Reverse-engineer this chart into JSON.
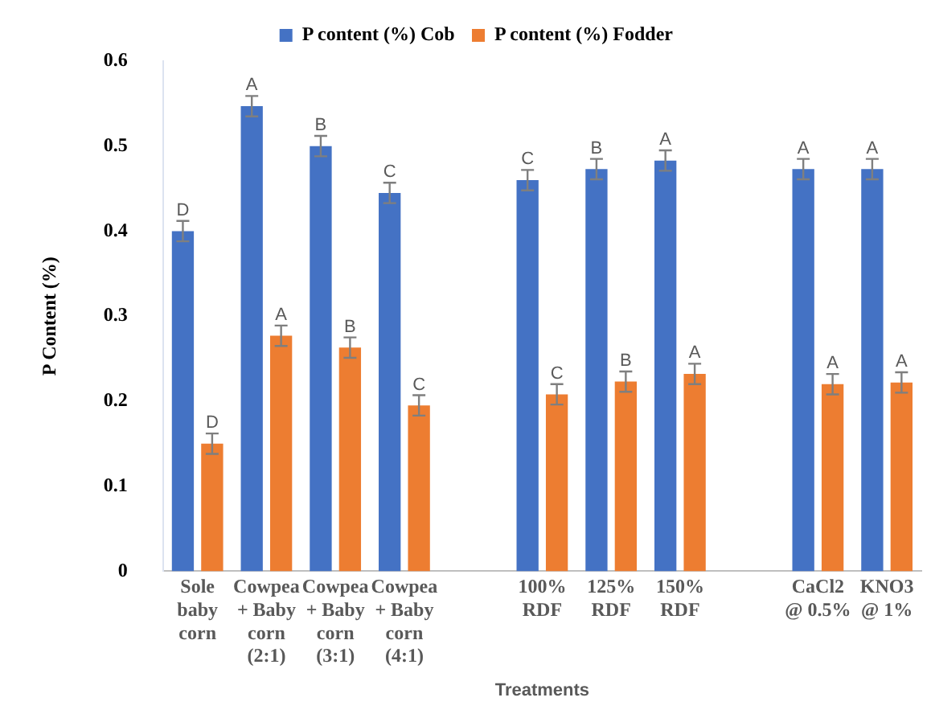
{
  "chart_data": {
    "type": "bar",
    "xlabel": "Treatments",
    "ylabel": "P Content (%)",
    "categories": [
      "Sole\nbaby\ncorn",
      "Cowpea\n+ Baby\ncorn\n(2:1)",
      "Cowpea\n+ Baby\ncorn\n(3:1)",
      "Cowpea\n+ Baby\ncorn\n(4:1)",
      null,
      "100%\nRDF",
      "125%\nRDF",
      "150%\nRDF",
      null,
      "CaCl2\n@ 0.5%",
      "KNO3\n@ 1%"
    ],
    "series": [
      {
        "name": "P content (%) Cob",
        "color": "#4472c4",
        "values": [
          0.4,
          0.547,
          0.5,
          0.445,
          null,
          0.46,
          0.473,
          0.483,
          null,
          0.473,
          0.473
        ],
        "errors": [
          0.012,
          0.012,
          0.012,
          0.012,
          null,
          0.012,
          0.012,
          0.012,
          null,
          0.012,
          0.012
        ]
      },
      {
        "name": "P content (%) Fodder",
        "color": "#ed7d31",
        "values": [
          0.15,
          0.277,
          0.263,
          0.195,
          null,
          0.208,
          0.223,
          0.232,
          null,
          0.22,
          0.222
        ],
        "errors": [
          0.012,
          0.012,
          0.012,
          0.012,
          null,
          0.012,
          0.012,
          0.012,
          null,
          0.012,
          0.012
        ]
      }
    ],
    "ylim": [
      0,
      0.6
    ],
    "yticks": [
      0,
      0.1,
      0.2,
      0.3,
      0.4,
      0.5,
      0.6
    ],
    "grid": false,
    "legend": "top",
    "annotations": [
      {
        "text": "D",
        "x": "Sole\nbaby\ncorn",
        "y": 0.4
      },
      {
        "text": "D",
        "x": "Sole\nbaby\ncorn",
        "y": 0.15
      },
      {
        "text": "A",
        "x": "Cowpea\n+ Baby\ncorn\n(2:1)",
        "y": 0.547
      },
      {
        "text": "A",
        "x": "Cowpea\n+ Baby\ncorn\n(2:1)",
        "y": 0.277
      },
      {
        "text": "B",
        "x": "Cowpea\n+ Baby\ncorn\n(3:1)",
        "y": 0.5
      },
      {
        "text": "B",
        "x": "Cowpea\n+ Baby\ncorn\n(3:1)",
        "y": 0.263
      },
      {
        "text": "C",
        "x": "Cowpea\n+ Baby\ncorn\n(4:1)",
        "y": 0.445
      },
      {
        "text": "C",
        "x": "Cowpea\n+ Baby\ncorn\n(4:1)",
        "y": 0.195
      },
      {
        "text": "C",
        "x": "100%\nRDF",
        "y": 0.46
      },
      {
        "text": "C",
        "x": "100%\nRDF",
        "y": 0.208
      },
      {
        "text": "B",
        "x": "125%\nRDF",
        "y": 0.473
      },
      {
        "text": "B",
        "x": "125%\nRDF",
        "y": 0.223
      },
      {
        "text": "A",
        "x": "150%\nRDF",
        "y": 0.483
      },
      {
        "text": "A",
        "x": "150%\nRDF",
        "y": 0.232
      },
      {
        "text": "A",
        "x": "CaCl2\n@ 0.5%",
        "y": 0.473
      },
      {
        "text": "A",
        "x": "CaCl2\n@ 0.5%",
        "y": 0.22
      },
      {
        "text": "A",
        "x": "KNO3\n@ 1%",
        "y": 0.473
      },
      {
        "text": "A",
        "x": "KNO3\n@ 1%",
        "y": 0.222
      }
    ]
  }
}
